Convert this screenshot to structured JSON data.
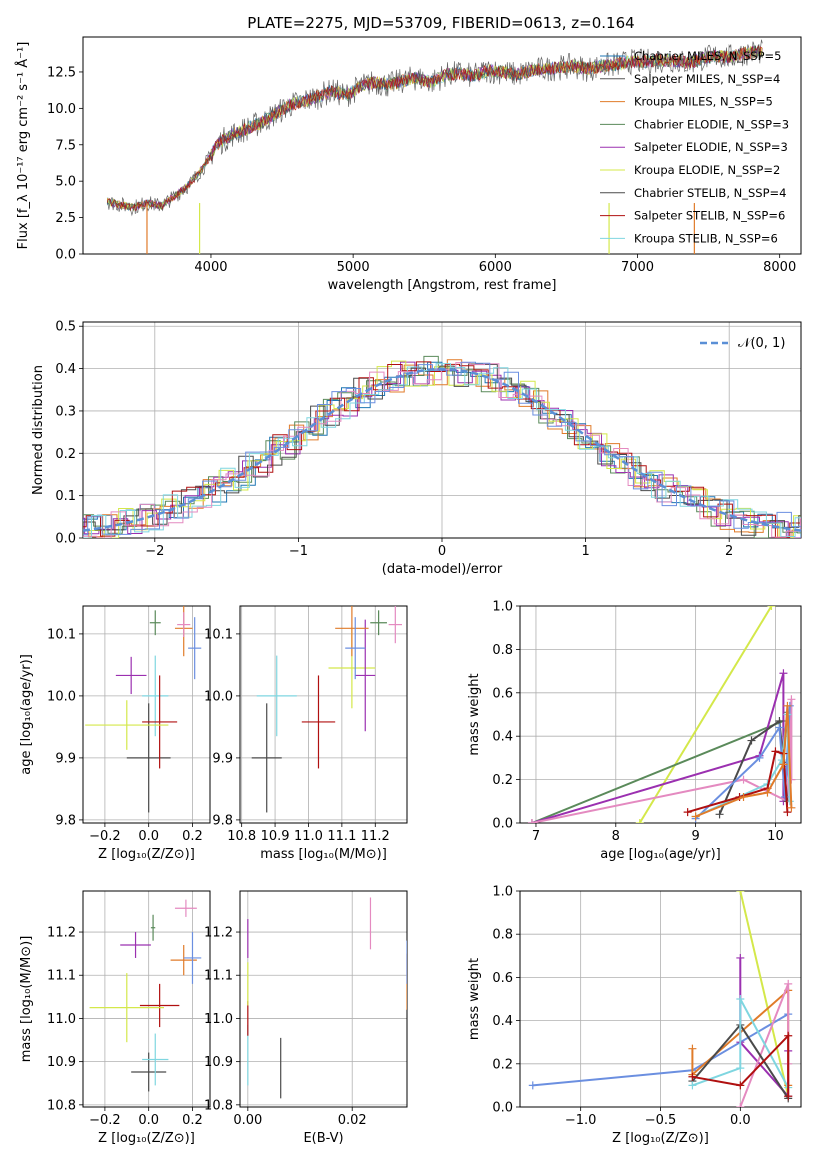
{
  "figure": {
    "title": "PLATE=2275, MJD=53709, FIBERID=0613, z=0.164"
  },
  "chart_data": [
    {
      "id": "spectrum",
      "type": "line",
      "xlabel": "wavelength [Angstrom, rest frame]",
      "ylabel": "Flux [f_λ 10⁻¹⁷ erg cm⁻² s⁻¹ Å⁻¹]",
      "xlim": [
        3100,
        8150
      ],
      "ylim": [
        0,
        14.9
      ],
      "xticks": [
        4000,
        5000,
        6000,
        7000,
        8000
      ],
      "yticks": [
        0.0,
        2.5,
        5.0,
        7.5,
        10.0,
        12.5
      ],
      "xtick_labels": [
        "4000",
        "5000",
        "6000",
        "7000",
        "8000"
      ],
      "ytick_labels": [
        "0.0",
        "2.5",
        "5.0",
        "7.5",
        "10.0",
        "12.5"
      ],
      "grid": false,
      "legend_position": "right",
      "x": [
        3270,
        3350,
        3450,
        3550,
        3650,
        3750,
        3850,
        3950,
        4050,
        4150,
        4250,
        4350,
        4450,
        4550,
        4650,
        4750,
        4850,
        4950,
        5050,
        5150,
        5250,
        5350,
        5450,
        5550,
        5650,
        5750,
        5850,
        5950,
        6050,
        6150,
        6250,
        6350,
        6450,
        6550,
        6650,
        6750,
        6850,
        6950,
        7050,
        7150,
        7250,
        7350,
        7450,
        7550,
        7650,
        7750,
        7850,
        7900
      ],
      "flux": [
        3.6,
        3.4,
        3.2,
        3.5,
        3.3,
        4.0,
        4.8,
        6.0,
        7.6,
        8.2,
        8.6,
        9.0,
        9.6,
        10.2,
        10.5,
        10.8,
        11.2,
        10.9,
        11.5,
        11.8,
        11.6,
        11.9,
        12.1,
        11.8,
        12.3,
        12.4,
        12.2,
        12.6,
        12.5,
        12.3,
        12.6,
        12.7,
        12.8,
        12.9,
        12.7,
        12.9,
        13.0,
        13.2,
        13.2,
        13.3,
        13.3,
        13.1,
        13.4,
        13.6,
        13.5,
        13.8,
        13.9,
        13.8
      ],
      "series": [
        {
          "name": "Chabrier MILES, N_SSP=5",
          "color": "#1f77b4"
        },
        {
          "name": "Salpeter MILES, N_SSP=4",
          "color": "#555555"
        },
        {
          "name": "Kroupa MILES, N_SSP=5",
          "color": "#e07b2a"
        },
        {
          "name": "Chabrier ELODIE, N_SSP=3",
          "color": "#5a8a5a"
        },
        {
          "name": "Salpeter ELODIE, N_SSP=3",
          "color": "#9b30b0"
        },
        {
          "name": "Kroupa ELODIE, N_SSP=2",
          "color": "#d4e84a"
        },
        {
          "name": "Chabrier STELIB, N_SSP=4",
          "color": "#4a4a4a"
        },
        {
          "name": "Salpeter STELIB, N_SSP=6",
          "color": "#b01010"
        },
        {
          "name": "Kroupa STELIB, N_SSP=6",
          "color": "#7fd6e0"
        }
      ]
    },
    {
      "id": "residuals",
      "type": "line",
      "xlabel": "(data-model)/error",
      "ylabel": "Normed distribution",
      "xlim": [
        -2.5,
        2.5
      ],
      "ylim": [
        0,
        0.51
      ],
      "xticks": [
        -2,
        -1,
        0,
        1,
        2
      ],
      "xtick_labels": [
        "−2",
        "−1",
        "0",
        "1",
        "2"
      ],
      "yticks": [
        0.0,
        0.1,
        0.2,
        0.3,
        0.4,
        0.5
      ],
      "ytick_labels": [
        "0.0",
        "0.1",
        "0.2",
        "0.3",
        "0.4",
        "0.5"
      ],
      "grid": true,
      "legend_position": "top-right",
      "gaussian": {
        "name": "𝒩(0, 1)",
        "mean": 0,
        "sigma": 1,
        "color": "#5a8fd6"
      },
      "series_colors": [
        "#1f77b4",
        "#e07b2a",
        "#5a8a5a",
        "#9b30b0",
        "#d4e84a",
        "#4a4a4a",
        "#b01010",
        "#7fd6e0",
        "#e48ac0",
        "#6b8fe0"
      ]
    },
    {
      "id": "age-vs-Z",
      "type": "scatter",
      "xlabel": "Z [log₁₀(Z/Z⊙)]",
      "ylabel": "age  [log₁₀(age/yr)]",
      "xlim": [
        -0.3,
        0.28
      ],
      "ylim": [
        9.795,
        10.145
      ],
      "xticks": [
        -0.2,
        0.0,
        0.2
      ],
      "xtick_labels": [
        "−0.2",
        "0.0",
        "0.2"
      ],
      "yticks": [
        9.8,
        9.9,
        10.0,
        10.1
      ],
      "ytick_labels": [
        "9.8",
        "9.9",
        "10.0",
        "10.1"
      ],
      "grid": true,
      "points": [
        {
          "color": "#4a4a4a",
          "x": 0.0,
          "xerr": 0.1,
          "y": 9.9,
          "yerr": 0.088
        },
        {
          "color": "#7fd6e0",
          "x": 0.03,
          "xerr": 0.06,
          "y": 10.0,
          "yerr": 0.065
        },
        {
          "color": "#b01010",
          "x": 0.05,
          "xerr": 0.08,
          "y": 9.958,
          "yerr": 0.075
        },
        {
          "color": "#d4e84a",
          "x": -0.1,
          "xerr": 0.19,
          "y": 9.953,
          "yerr": 0.04
        },
        {
          "color": "#9b30b0",
          "x": -0.08,
          "xerr": 0.07,
          "y": 10.033,
          "yerr": 0.03
        },
        {
          "color": "#5a8a5a",
          "x": 0.03,
          "xerr": 0.025,
          "y": 10.118,
          "yerr": 0.02
        },
        {
          "color": "#e07b2a",
          "x": 0.16,
          "xerr": 0.04,
          "y": 10.109,
          "yerr": 0.045
        },
        {
          "color": "#6b8fe0",
          "x": 0.21,
          "xerr": 0.03,
          "y": 10.077,
          "yerr": 0.05
        },
        {
          "color": "#e48ac0",
          "x": 0.16,
          "xerr": 0.03,
          "y": 10.115,
          "yerr": 0.02
        }
      ]
    },
    {
      "id": "age-vs-mass",
      "type": "scatter",
      "xlabel": "mass [log₁₀(M/M⊙)]",
      "ylabel": "",
      "xlim": [
        10.795,
        11.295
      ],
      "ylim": [
        9.795,
        10.145
      ],
      "xticks": [
        10.8,
        10.9,
        11.0,
        11.1,
        11.2
      ],
      "xtick_labels": [
        "10.8",
        "10.9",
        "11.0",
        "11.1",
        "11.2"
      ],
      "yticks": [
        9.8,
        9.9,
        10.0,
        10.1
      ],
      "ytick_labels": [
        "9.8",
        "9.9",
        "10.0",
        "10.1"
      ],
      "grid": true,
      "points": [
        {
          "color": "#4a4a4a",
          "x": 10.875,
          "xerr": 0.045,
          "y": 9.9,
          "yerr": 0.088
        },
        {
          "color": "#7fd6e0",
          "x": 10.905,
          "xerr": 0.06,
          "y": 10.0,
          "yerr": 0.065
        },
        {
          "color": "#b01010",
          "x": 11.03,
          "xerr": 0.05,
          "y": 9.958,
          "yerr": 0.075
        },
        {
          "color": "#d4e84a",
          "x": 11.13,
          "xerr": 0.07,
          "y": 10.045,
          "yerr": 0.065
        },
        {
          "color": "#9b30b0",
          "x": 11.17,
          "xerr": 0.03,
          "y": 10.033,
          "yerr": 0.09
        },
        {
          "color": "#5a8a5a",
          "x": 11.21,
          "xerr": 0.025,
          "y": 10.118,
          "yerr": 0.02
        },
        {
          "color": "#e07b2a",
          "x": 11.13,
          "xerr": 0.05,
          "y": 10.109,
          "yerr": 0.045
        },
        {
          "color": "#6b8fe0",
          "x": 11.14,
          "xerr": 0.03,
          "y": 10.077,
          "yerr": 0.05
        },
        {
          "color": "#e48ac0",
          "x": 11.26,
          "xerr": 0.02,
          "y": 10.115,
          "yerr": 0.03
        }
      ]
    },
    {
      "id": "weight-vs-age",
      "type": "line",
      "xlabel": "age  [log₁₀(age/yr)]",
      "ylabel": "mass weight",
      "xlim": [
        6.8,
        10.32
      ],
      "ylim": [
        0,
        1.0
      ],
      "xticks": [
        7,
        8,
        9,
        10
      ],
      "xtick_labels": [
        "7",
        "8",
        "9",
        "10"
      ],
      "yticks": [
        0.0,
        0.2,
        0.4,
        0.6,
        0.8,
        1.0
      ],
      "ytick_labels": [
        "0.0",
        "0.2",
        "0.4",
        "0.6",
        "0.8",
        "1.0"
      ],
      "grid": true,
      "series": [
        {
          "color": "#d4e84a",
          "x": [
            8.3,
            9.95
          ],
          "y": [
            0.0,
            1.0
          ]
        },
        {
          "color": "#5a8a5a",
          "x": [
            6.95,
            10.1,
            10.1,
            10.15
          ],
          "y": [
            0.0,
            0.47,
            0.27,
            0.51
          ]
        },
        {
          "color": "#9b30b0",
          "x": [
            6.95,
            9.8,
            10.1,
            10.1,
            10.15
          ],
          "y": [
            0.0,
            0.31,
            0.69,
            0.1,
            0.26
          ]
        },
        {
          "color": "#e48ac0",
          "x": [
            6.95,
            9.6,
            10.15,
            10.2,
            10.2
          ],
          "y": [
            0.0,
            0.2,
            0.1,
            0.57,
            0.2
          ]
        },
        {
          "color": "#4a4a4a",
          "x": [
            9.3,
            9.7,
            10.05,
            10.1,
            10.15
          ],
          "y": [
            0.04,
            0.38,
            0.47,
            0.28,
            0.1
          ]
        },
        {
          "color": "#6b8fe0",
          "x": [
            9.0,
            9.8,
            10.05,
            10.12,
            10.18
          ],
          "y": [
            0.02,
            0.3,
            0.44,
            0.12,
            0.54
          ]
        },
        {
          "color": "#7fd6e0",
          "x": [
            9.0,
            9.9,
            10.08,
            10.15,
            10.18
          ],
          "y": [
            0.03,
            0.18,
            0.29,
            0.5,
            0.1
          ]
        },
        {
          "color": "#b01010",
          "x": [
            8.9,
            9.55,
            9.9,
            10.0,
            10.1,
            10.15
          ],
          "y": [
            0.05,
            0.12,
            0.16,
            0.33,
            0.32,
            0.05
          ]
        },
        {
          "color": "#e07b2a",
          "x": [
            9.0,
            9.6,
            9.9,
            10.1,
            10.15,
            10.2
          ],
          "y": [
            0.03,
            0.12,
            0.14,
            0.27,
            0.54,
            0.07
          ]
        }
      ]
    },
    {
      "id": "mass-vs-Z",
      "type": "scatter",
      "xlabel": "Z [log₁₀(Z/Z⊙)]",
      "ylabel": "mass [log₁₀(M/M⊙)]",
      "xlim": [
        -0.3,
        0.28
      ],
      "ylim": [
        10.795,
        11.295
      ],
      "xticks": [
        -0.2,
        0.0,
        0.2
      ],
      "xtick_labels": [
        "−0.2",
        "0.0",
        "0.2"
      ],
      "yticks": [
        10.8,
        10.9,
        11.0,
        11.1,
        11.2
      ],
      "ytick_labels": [
        "10.8",
        "10.9",
        "11.0",
        "11.1",
        "11.2"
      ],
      "grid": true,
      "points": [
        {
          "color": "#4a4a4a",
          "x": 0.0,
          "xerr": 0.08,
          "y": 10.876,
          "yerr": 0.045
        },
        {
          "color": "#7fd6e0",
          "x": 0.03,
          "xerr": 0.06,
          "y": 10.905,
          "yerr": 0.06
        },
        {
          "color": "#b01010",
          "x": 0.05,
          "xerr": 0.09,
          "y": 11.03,
          "yerr": 0.05
        },
        {
          "color": "#d4e84a",
          "x": -0.1,
          "xerr": 0.17,
          "y": 11.025,
          "yerr": 0.08
        },
        {
          "color": "#9b30b0",
          "x": -0.06,
          "xerr": 0.07,
          "y": 11.17,
          "yerr": 0.03
        },
        {
          "color": "#5a8a5a",
          "x": 0.02,
          "xerr": 0.01,
          "y": 11.21,
          "yerr": 0.03
        },
        {
          "color": "#e07b2a",
          "x": 0.16,
          "xerr": 0.06,
          "y": 11.135,
          "yerr": 0.035
        },
        {
          "color": "#6b8fe0",
          "x": 0.2,
          "xerr": 0.04,
          "y": 11.14,
          "yerr": 0.06
        },
        {
          "color": "#e48ac0",
          "x": 0.17,
          "xerr": 0.05,
          "y": 11.255,
          "yerr": 0.02
        }
      ]
    },
    {
      "id": "mass-vs-ebv",
      "type": "scatter",
      "xlabel": "E(B-V)",
      "ylabel": "",
      "xlim": [
        -0.0015,
        0.0305
      ],
      "ylim": [
        10.795,
        11.295
      ],
      "xticks": [
        0.0,
        0.02
      ],
      "xtick_labels": [
        "0.00",
        "0.02"
      ],
      "yticks": [
        10.8,
        10.9,
        11.0,
        11.1,
        11.2
      ],
      "ytick_labels": [
        "10.8",
        "10.9",
        "11.0",
        "11.1",
        "11.2"
      ],
      "grid": true,
      "points": [
        {
          "color": "#4a4a4a",
          "x": 0.0063,
          "xerr": 0,
          "y": 10.885,
          "yerr": 0.07
        },
        {
          "color": "#7fd6e0",
          "x": 0.0,
          "xerr": 0,
          "y": 10.915,
          "yerr": 0.07
        },
        {
          "color": "#b01010",
          "x": 0.0,
          "xerr": 0,
          "y": 11.0,
          "yerr": 0.04
        },
        {
          "color": "#d4e84a",
          "x": 0.0,
          "xerr": 0,
          "y": 11.08,
          "yerr": 0.05
        },
        {
          "color": "#9b30b0",
          "x": 0.0,
          "xerr": 0,
          "y": 11.185,
          "yerr": 0.045
        },
        {
          "color": "#e48ac0",
          "x": 0.0235,
          "xerr": 0,
          "y": 11.22,
          "yerr": 0.06
        },
        {
          "color": "#e07b2a",
          "x": 0.0305,
          "xerr": 0,
          "y": 11.085,
          "yerr": 0.065
        },
        {
          "color": "#6b8fe0",
          "x": 0.0305,
          "xerr": 0,
          "y": 11.13,
          "yerr": 0.05
        }
      ]
    },
    {
      "id": "weight-vs-Z",
      "type": "line",
      "xlabel": "Z [log₁₀(Z/Z⊙)]",
      "ylabel": "mass weight",
      "xlim": [
        -1.38,
        0.38
      ],
      "ylim": [
        0,
        1.0
      ],
      "xticks": [
        -1.0,
        -0.5,
        0.0
      ],
      "xtick_labels": [
        "−1.0",
        "−0.5",
        "0.0"
      ],
      "yticks": [
        0.0,
        0.2,
        0.4,
        0.6,
        0.8,
        1.0
      ],
      "ytick_labels": [
        "0.0",
        "0.2",
        "0.4",
        "0.6",
        "0.8",
        "1.0"
      ],
      "grid": true,
      "series": [
        {
          "color": "#d4e84a",
          "x": [
            0.0,
            0.3
          ],
          "y": [
            1.0,
            0.05
          ]
        },
        {
          "color": "#6b8fe0",
          "x": [
            -1.3,
            -0.3,
            0.3
          ],
          "y": [
            0.1,
            0.17,
            0.43
          ]
        },
        {
          "color": "#e07b2a",
          "x": [
            -0.3,
            -0.3,
            0.3,
            0.3
          ],
          "y": [
            0.27,
            0.15,
            0.54,
            0.1
          ]
        },
        {
          "color": "#9b30b0",
          "x": [
            0.0,
            0.0,
            0.3,
            0.3
          ],
          "y": [
            0.69,
            0.3,
            0.05,
            0.26
          ]
        },
        {
          "color": "#e48ac0",
          "x": [
            0.0,
            0.3,
            0.3
          ],
          "y": [
            0.0,
            0.57,
            0.2
          ]
        },
        {
          "color": "#4a4a4a",
          "x": [
            -0.3,
            0.0,
            0.3
          ],
          "y": [
            0.12,
            0.38,
            0.04
          ]
        },
        {
          "color": "#7fd6e0",
          "x": [
            -0.3,
            0.0,
            0.0,
            0.3
          ],
          "y": [
            0.1,
            0.18,
            0.5,
            0.09
          ]
        },
        {
          "color": "#b01010",
          "x": [
            -0.3,
            0.0,
            0.3,
            0.3
          ],
          "y": [
            0.14,
            0.1,
            0.33,
            0.05
          ]
        }
      ]
    }
  ]
}
